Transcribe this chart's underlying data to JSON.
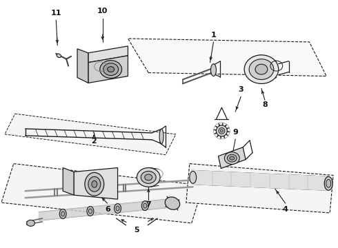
{
  "background_color": "#ffffff",
  "line_color": "#1a1a1a",
  "label_color": "#111111",
  "fig_width": 4.9,
  "fig_height": 3.6,
  "dpi": 100,
  "parts": {
    "upper_box1": {
      "x": [
        0.43,
        0.97,
        0.92,
        0.38
      ],
      "y": [
        0.695,
        0.775,
        0.895,
        0.815
      ]
    },
    "upper_box2": {
      "x": [
        0.04,
        0.52,
        0.49,
        0.01
      ],
      "y": [
        0.455,
        0.575,
        0.625,
        0.505
      ]
    },
    "lower_box_left": {
      "x": [
        0.05,
        0.57,
        0.52,
        0.0
      ],
      "y": [
        0.295,
        0.445,
        0.535,
        0.385
      ]
    },
    "lower_box_right": {
      "x": [
        0.52,
        0.99,
        0.97,
        0.5
      ],
      "y": [
        0.35,
        0.445,
        0.535,
        0.44
      ]
    }
  }
}
